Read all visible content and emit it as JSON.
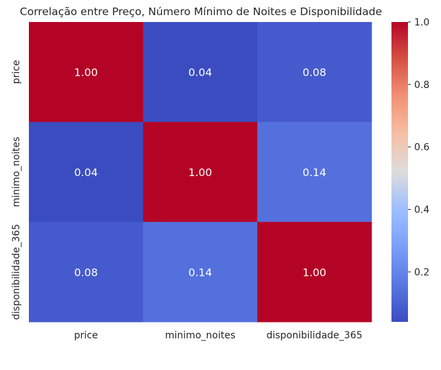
{
  "chart_data": {
    "type": "heatmap",
    "title": "Correlação entre Preço, Número Mínimo de Noites e Disponibilidade",
    "xlabel": "",
    "ylabel": "",
    "x_categories": [
      "price",
      "minimo_noites",
      "disponibilidade_365"
    ],
    "y_categories": [
      "price",
      "minimo_noites",
      "disponibilidade_365"
    ],
    "values": [
      [
        1.0,
        0.04,
        0.08
      ],
      [
        0.04,
        1.0,
        0.14
      ],
      [
        0.08,
        0.14,
        1.0
      ]
    ],
    "annotations": [
      [
        "1.00",
        "0.04",
        "0.08"
      ],
      [
        "0.04",
        "1.00",
        "0.14"
      ],
      [
        "0.08",
        "0.14",
        "1.00"
      ]
    ],
    "colormap": "coolwarm",
    "colorbar": {
      "range": [
        0.04,
        1.0
      ],
      "ticks": [
        0.2,
        0.4,
        0.6,
        0.8,
        1.0
      ],
      "tick_labels": [
        "0.2",
        "0.4",
        "0.6",
        "0.8",
        "1.0"
      ]
    }
  }
}
